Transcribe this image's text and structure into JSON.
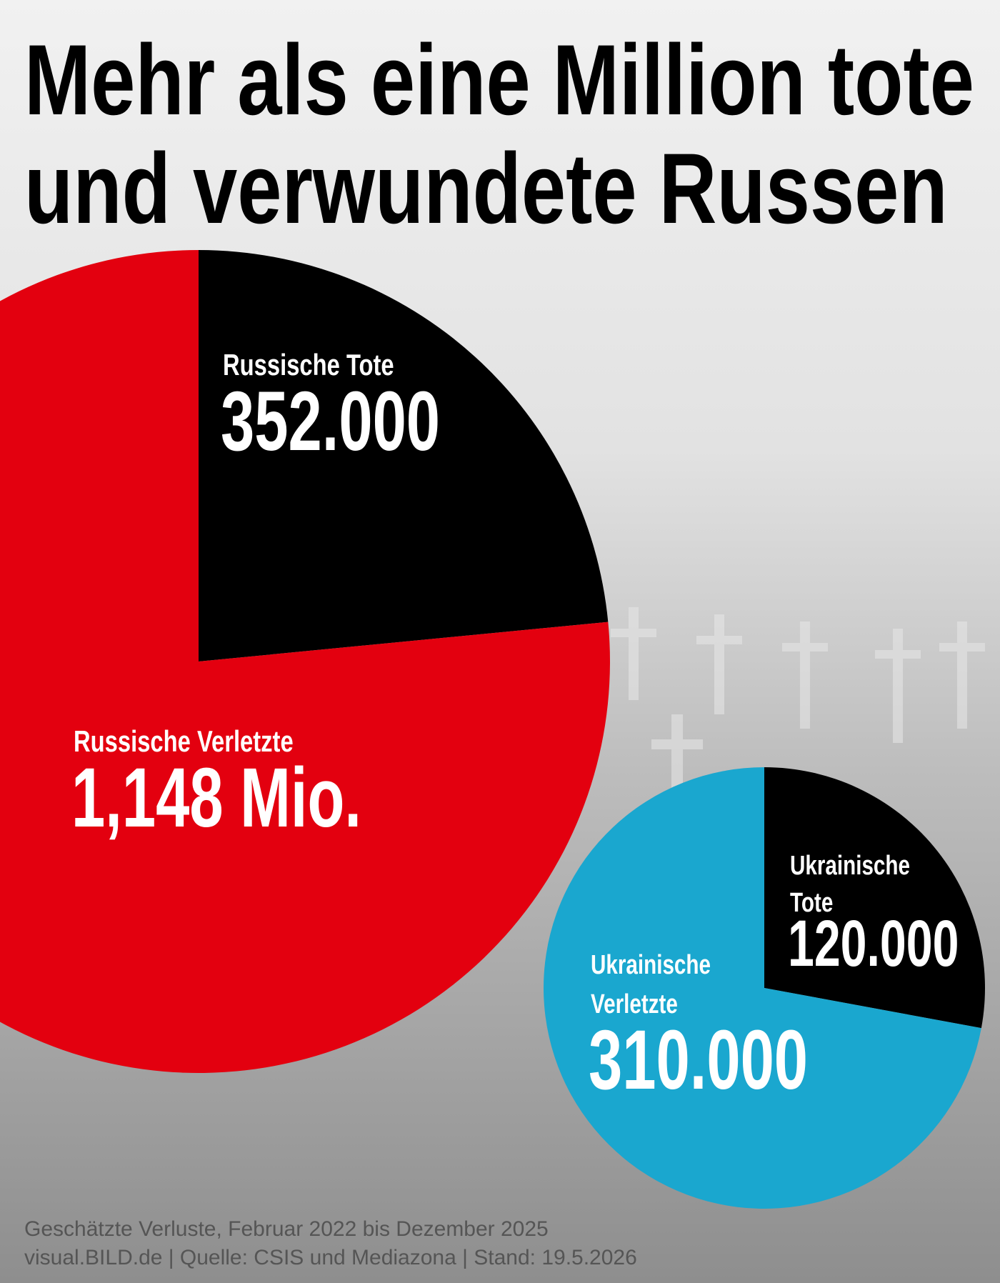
{
  "title": [
    "Mehr als eine Million tote",
    "und verwundete Russen"
  ],
  "chart_data": [
    {
      "type": "pie",
      "categories": [
        "Russische Tote",
        "Russische Verletzte"
      ],
      "values": [
        352000,
        1148000
      ],
      "value_labels": [
        "352.000",
        "1,148 Mio."
      ],
      "colors": [
        "#000000",
        "#e3000f"
      ]
    },
    {
      "type": "pie",
      "categories": [
        "Ukrainische Tote",
        "Ukrainische Verletzte"
      ],
      "values": [
        120000,
        310000
      ],
      "value_labels": [
        "120.000",
        "310.000"
      ],
      "colors": [
        "#000000",
        "#1aa7cf"
      ]
    }
  ],
  "footnote": [
    "Geschätzte Verluste, Februar 2022 bis Dezember 2025",
    "visual.BILD.de | Quelle: CSIS und Mediazona | Stand: 19.5.2026"
  ]
}
